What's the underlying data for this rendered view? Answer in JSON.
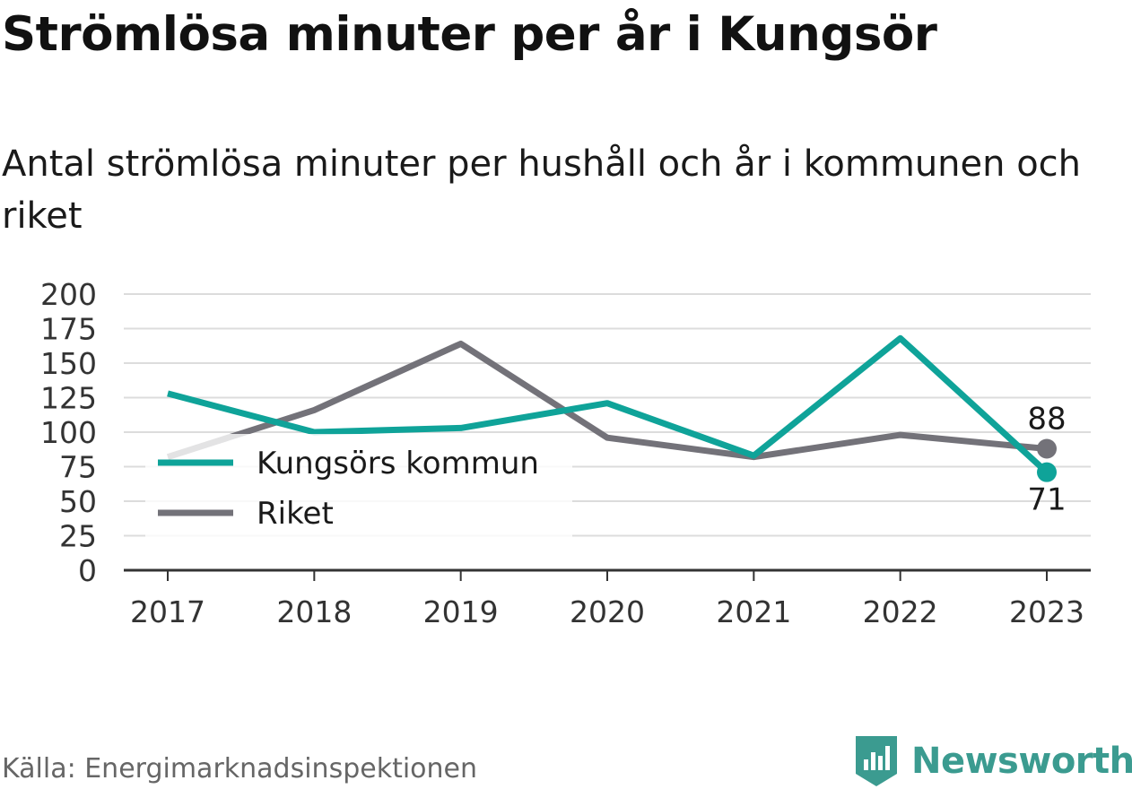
{
  "title": "Strömlösa minuter per år i Kungsör",
  "subtitle": "Antal strömlösa minuter per hushåll och år i kommunen och riket",
  "source": "Källa: Energimarknadsinspektionen",
  "brand": {
    "name": "Newsworthy",
    "icon": "newsworthy-logo-icon",
    "color": "#3b9b90"
  },
  "chart_data": {
    "type": "line",
    "x": [
      "2017",
      "2018",
      "2019",
      "2020",
      "2021",
      "2022",
      "2023"
    ],
    "ylim": [
      0,
      200
    ],
    "yticks": [
      "0",
      "25",
      "50",
      "75",
      "100",
      "125",
      "150",
      "175",
      "200"
    ],
    "grid": true,
    "legend_position": "left",
    "series": [
      {
        "name": "Kungsörs kommun",
        "color": "#0fa399",
        "values": [
          128,
          100,
          103,
          121,
          83,
          168,
          71
        ],
        "end_label": "71"
      },
      {
        "name": "Riket",
        "color": "#737279",
        "values": [
          82,
          116,
          164,
          96,
          82,
          98,
          88
        ],
        "end_label": "88"
      }
    ]
  }
}
